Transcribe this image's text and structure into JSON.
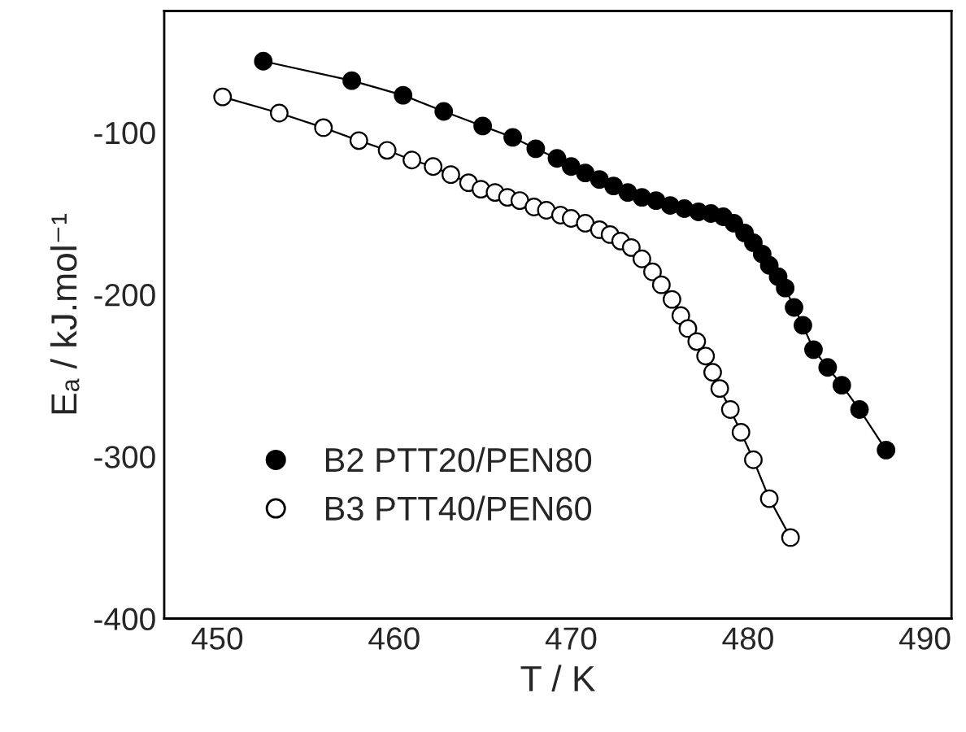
{
  "chart_data": {
    "type": "line",
    "xlabel": "T / K",
    "ylabel": "Eₐ / kJ.mol⁻¹",
    "xlim": [
      447,
      491.5
    ],
    "ylim": [
      -400,
      -25
    ],
    "xticks": [
      450,
      460,
      470,
      480,
      490
    ],
    "yticks": [
      -400,
      -300,
      -200,
      -100
    ],
    "grid": false,
    "legend": "bottom left",
    "marker": "circle",
    "line_style": "solid",
    "series": [
      {
        "name": "B2 PTT20/PEN80",
        "color": "#000000",
        "x": [
          452.6,
          457.6,
          460.5,
          462.8,
          465.0,
          466.7,
          468.0,
          469.2,
          470.0,
          470.8,
          471.6,
          472.4,
          473.2,
          474.0,
          474.8,
          475.6,
          476.4,
          477.2,
          477.9,
          478.6,
          479.2,
          479.8,
          480.3,
          480.8,
          481.2,
          481.7,
          482.1,
          482.6,
          483.1,
          483.7,
          484.5,
          485.3,
          486.3,
          487.8
        ],
        "values": [
          -56,
          -68,
          -77,
          -87,
          -96,
          -103,
          -110,
          -116,
          -121,
          -125,
          -129,
          -133,
          -137,
          -140,
          -142,
          -145,
          -147,
          -149,
          -150,
          -152,
          -156,
          -162,
          -168,
          -175,
          -182,
          -189,
          -196,
          -208,
          -219,
          -234,
          -245,
          -256,
          -271,
          -296
        ]
      },
      {
        "name": "B3 PTT40/PEN60",
        "color": "#ffffff",
        "x": [
          450.3,
          453.5,
          456.0,
          458.0,
          459.6,
          461.0,
          462.2,
          463.2,
          464.2,
          464.9,
          465.7,
          466.4,
          467.1,
          467.9,
          468.6,
          469.4,
          470.0,
          470.8,
          471.6,
          472.2,
          472.8,
          473.4,
          474.0,
          474.6,
          475.1,
          475.7,
          476.2,
          476.6,
          477.1,
          477.6,
          478.0,
          478.4,
          479.0,
          479.6,
          480.3,
          481.2,
          482.4
        ],
        "values": [
          -78,
          -88,
          -97,
          -105,
          -111,
          -117,
          -121,
          -126,
          -131,
          -135,
          -137,
          -140,
          -142,
          -146,
          -148,
          -151,
          -153,
          -156,
          -160,
          -163,
          -167,
          -171,
          -178,
          -186,
          -194,
          -203,
          -213,
          -221,
          -229,
          -238,
          -248,
          -258,
          -271,
          -285,
          -302,
          -326,
          -350
        ]
      }
    ]
  }
}
